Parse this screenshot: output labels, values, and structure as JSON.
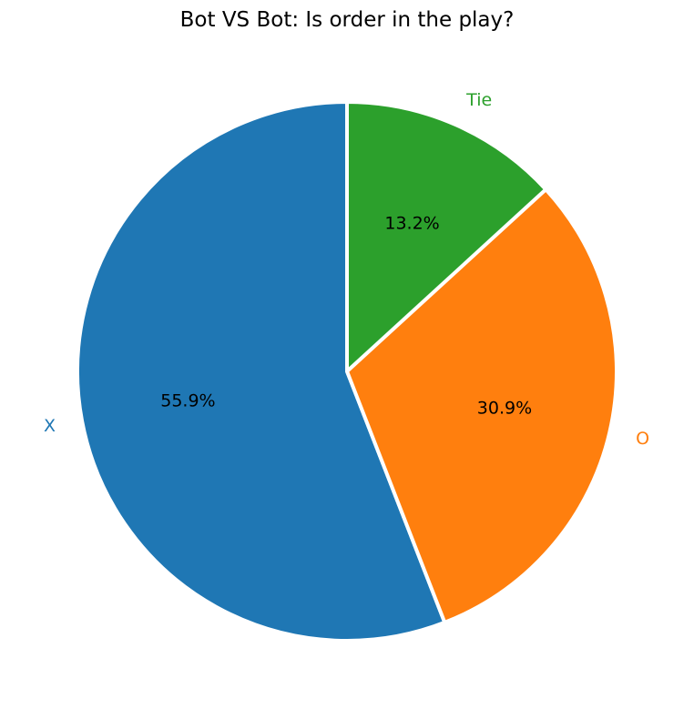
{
  "chart_data": {
    "type": "pie",
    "title": "Bot VS Bot: Is order in the play?",
    "start_angle_deg": 90,
    "direction": "counterclockwise",
    "slices": [
      {
        "label": "X",
        "value": 55.9,
        "pct_label": "55.9%",
        "color": "#1f77b4"
      },
      {
        "label": "O",
        "value": 30.9,
        "pct_label": "30.9%",
        "color": "#ff7f0e"
      },
      {
        "label": "Tie",
        "value": 13.2,
        "pct_label": "13.2%",
        "color": "#2ca02c"
      }
    ],
    "edge_color": "#ffffff"
  }
}
